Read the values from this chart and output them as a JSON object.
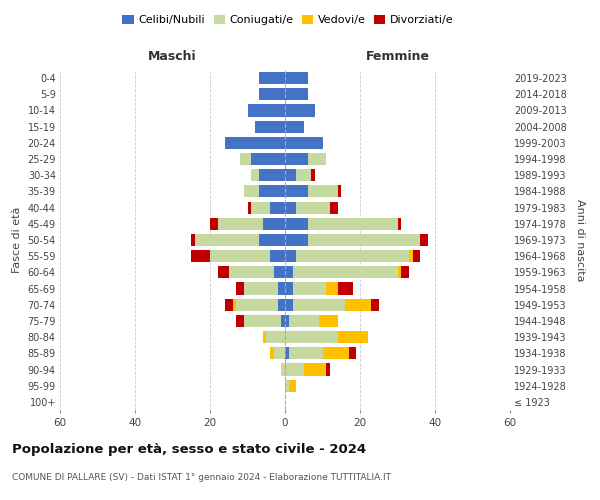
{
  "age_groups": [
    "100+",
    "95-99",
    "90-94",
    "85-89",
    "80-84",
    "75-79",
    "70-74",
    "65-69",
    "60-64",
    "55-59",
    "50-54",
    "45-49",
    "40-44",
    "35-39",
    "30-34",
    "25-29",
    "20-24",
    "15-19",
    "10-14",
    "5-9",
    "0-4"
  ],
  "birth_years": [
    "≤ 1923",
    "1924-1928",
    "1929-1933",
    "1934-1938",
    "1939-1943",
    "1944-1948",
    "1949-1953",
    "1954-1958",
    "1959-1963",
    "1964-1968",
    "1969-1973",
    "1974-1978",
    "1979-1983",
    "1984-1988",
    "1989-1993",
    "1994-1998",
    "1999-2003",
    "2004-2008",
    "2009-2013",
    "2014-2018",
    "2019-2023"
  ],
  "maschi_celibi": [
    0,
    0,
    0,
    0,
    0,
    1,
    2,
    2,
    3,
    4,
    7,
    6,
    4,
    7,
    7,
    9,
    16,
    8,
    10,
    7,
    7
  ],
  "maschi_coniugati": [
    0,
    0,
    1,
    3,
    5,
    10,
    11,
    9,
    12,
    16,
    17,
    12,
    5,
    4,
    2,
    3,
    0,
    0,
    0,
    0,
    0
  ],
  "maschi_vedovi": [
    0,
    0,
    0,
    1,
    1,
    0,
    1,
    0,
    0,
    0,
    0,
    0,
    0,
    0,
    0,
    0,
    0,
    0,
    0,
    0,
    0
  ],
  "maschi_divorziati": [
    0,
    0,
    0,
    0,
    0,
    2,
    2,
    2,
    3,
    5,
    1,
    2,
    1,
    0,
    0,
    0,
    0,
    0,
    0,
    0,
    0
  ],
  "femmine_celibi": [
    0,
    0,
    0,
    1,
    0,
    1,
    2,
    2,
    2,
    3,
    6,
    6,
    3,
    6,
    3,
    6,
    10,
    5,
    8,
    6,
    6
  ],
  "femmine_coniugati": [
    0,
    1,
    5,
    9,
    14,
    8,
    14,
    9,
    28,
    30,
    30,
    24,
    9,
    8,
    4,
    5,
    0,
    0,
    0,
    0,
    0
  ],
  "femmine_vedovi": [
    0,
    2,
    6,
    7,
    8,
    5,
    7,
    3,
    1,
    1,
    0,
    0,
    0,
    0,
    0,
    0,
    0,
    0,
    0,
    0,
    0
  ],
  "femmine_divorziati": [
    0,
    0,
    1,
    2,
    0,
    0,
    2,
    4,
    2,
    2,
    2,
    1,
    2,
    1,
    1,
    0,
    0,
    0,
    0,
    0,
    0
  ],
  "colors": {
    "celibi": "#4472c4",
    "coniugati": "#c5d9a0",
    "vedovi": "#ffc000",
    "divorziati": "#c00000"
  },
  "xlim": 60,
  "title": "Popolazione per età, sesso e stato civile - 2024",
  "subtitle": "COMUNE DI PALLARE (SV) - Dati ISTAT 1° gennaio 2024 - Elaborazione TUTTITALIA.IT",
  "ylabel_left": "Fasce di età",
  "ylabel_right": "Anni di nascita",
  "xlabel_maschi": "Maschi",
  "xlabel_femmine": "Femmine",
  "legend_labels": [
    "Celibi/Nubili",
    "Coniugati/e",
    "Vedovi/e",
    "Divorziati/e"
  ],
  "background_color": "#ffffff",
  "grid_color": "#cccccc"
}
